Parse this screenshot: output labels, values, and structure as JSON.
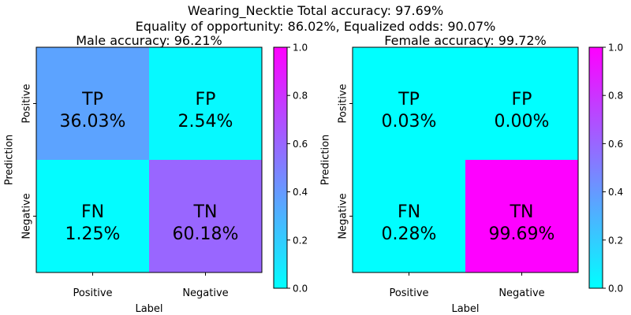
{
  "figure": {
    "title_line1": "Wearing_Necktie   Total accuracy: 97.69%",
    "title_line2": "Equality of opportunity: 86.02%, Equalized odds: 90.07%"
  },
  "chart_data": [
    {
      "type": "heatmap",
      "title": "Male accuracy: 96.21%",
      "xlabel": "Label",
      "ylabel": "Prediction",
      "x_ticks": [
        "Positive",
        "Negative"
      ],
      "y_ticks": [
        "Positive",
        "Negative"
      ],
      "cells": [
        {
          "row": 0,
          "col": 0,
          "label": "TP",
          "text": "36.03%",
          "value": 0.3603
        },
        {
          "row": 0,
          "col": 1,
          "label": "FP",
          "text": "2.54%",
          "value": 0.0254
        },
        {
          "row": 1,
          "col": 0,
          "label": "FN",
          "text": "1.25%",
          "value": 0.0125
        },
        {
          "row": 1,
          "col": 1,
          "label": "TN",
          "text": "60.18%",
          "value": 0.6018
        }
      ],
      "colorbar": {
        "range": [
          0,
          1
        ],
        "ticks": [
          "0.0",
          "0.2",
          "0.4",
          "0.6",
          "0.8",
          "1.0"
        ]
      },
      "colormap": "cool"
    },
    {
      "type": "heatmap",
      "title": "Female accuracy: 99.72%",
      "xlabel": "Label",
      "ylabel": "Prediction",
      "x_ticks": [
        "Positive",
        "Negative"
      ],
      "y_ticks": [
        "Positive",
        "Negative"
      ],
      "cells": [
        {
          "row": 0,
          "col": 0,
          "label": "TP",
          "text": "0.03%",
          "value": 0.0003
        },
        {
          "row": 0,
          "col": 1,
          "label": "FP",
          "text": "0.00%",
          "value": 0.0
        },
        {
          "row": 1,
          "col": 0,
          "label": "FN",
          "text": "0.28%",
          "value": 0.0028
        },
        {
          "row": 1,
          "col": 1,
          "label": "TN",
          "text": "99.69%",
          "value": 0.9969
        }
      ],
      "colorbar": {
        "range": [
          0,
          1
        ],
        "ticks": [
          "0.0",
          "0.2",
          "0.4",
          "0.6",
          "0.8",
          "1.0"
        ]
      },
      "colormap": "cool"
    }
  ]
}
